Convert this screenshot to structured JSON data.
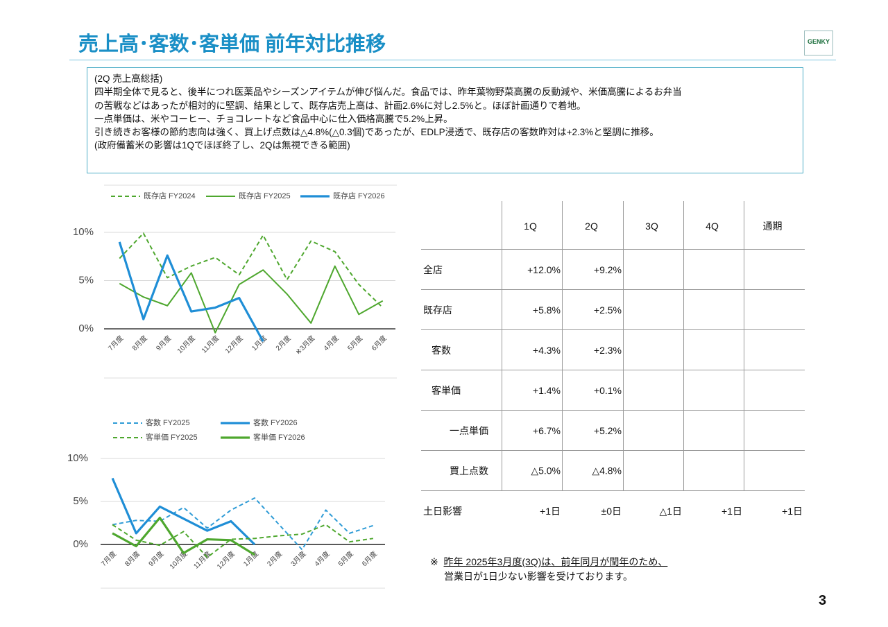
{
  "header": {
    "title": "売上高･客数･客単価 前年対比推移",
    "logo": "GENKY"
  },
  "summary": {
    "lines": [
      "(2Q 売上高総括)",
      "四半期全体で見ると、後半につれ医薬品やシーズンアイテムが伸び悩んだ。食品では、昨年葉物野菜高騰の反動減や、米価高騰によるお弁当",
      "の苦戦などはあったが相対的に堅調、結果として、既存店売上高は、計画2.6%に対し2.5%と。ほぼ計画通りで着地。",
      "一点単価は、米やコーヒー、チョコレートなど食品中心に仕入価格高騰で5.2%上昇。",
      "引き続きお客様の節約志向は強く、買上げ点数は△4.8%(△0.3個)であったが、EDLP浸透で、既存店の客数昨対は+2.3%と堅調に推移。",
      "(政府備蓄米の影響は1Qでほぼ終了し、2Qは無視できる範囲)"
    ]
  },
  "chart_data": [
    {
      "type": "line",
      "categories": [
        "7月度",
        "8月度",
        "9月度",
        "10月度",
        "11月度",
        "12月度",
        "1月度",
        "2月度",
        "※3月度",
        "4月度",
        "5月度",
        "6月度"
      ],
      "series": [
        {
          "name": "既存店 FY2024",
          "color": "#4ea72e",
          "dash": true,
          "values": [
            7.3,
            9.9,
            5.3,
            6.5,
            7.4,
            5.6,
            9.7,
            5.1,
            9.1,
            8.0,
            4.6,
            2.2
          ]
        },
        {
          "name": "既存店 FY2025",
          "color": "#4ea72e",
          "dash": false,
          "values": [
            4.7,
            3.3,
            2.4,
            5.8,
            -0.4,
            4.6,
            6.1,
            3.6,
            0.6,
            6.5,
            1.5,
            2.9
          ]
        },
        {
          "name": "既存店 FY2026",
          "color": "#1f8ed6",
          "dash": false,
          "values": [
            9.0,
            1.0,
            7.6,
            1.8,
            2.2,
            3.2,
            -1.3,
            null,
            null,
            null,
            null,
            null
          ]
        }
      ],
      "ylim": [
        -2,
        10.5
      ],
      "yticks": [
        {
          "value": 0,
          "label": "0%"
        },
        {
          "value": 5,
          "label": "5%"
        },
        {
          "value": 10,
          "label": "10%"
        }
      ],
      "grid": true
    },
    {
      "type": "line",
      "categories": [
        "7月度",
        "8月度",
        "9月度",
        "10月度",
        "11月度",
        "12月度",
        "1月度",
        "2月度",
        "3月度",
        "4月度",
        "5月度",
        "6月度"
      ],
      "series": [
        {
          "name": "客数 FY2025",
          "color": "#2e9bd6",
          "dash": true,
          "values": [
            2.3,
            2.8,
            2.7,
            4.3,
            1.9,
            4.0,
            5.4,
            2.4,
            -0.6,
            4.0,
            1.3,
            2.2
          ]
        },
        {
          "name": "客数 FY2026",
          "color": "#1f8ed6",
          "dash": false,
          "values": [
            7.7,
            1.3,
            4.4,
            3.0,
            1.6,
            2.7,
            0.0,
            null,
            null,
            null,
            null,
            null
          ]
        },
        {
          "name": "客単価 FY2025",
          "color": "#4ea72e",
          "dash": true,
          "values": [
            2.3,
            0.5,
            -0.1,
            1.5,
            -1.5,
            0.6,
            0.7,
            1.0,
            1.2,
            2.3,
            0.3,
            0.7
          ]
        },
        {
          "name": "客単価 FY2026",
          "color": "#4ea72e",
          "dash": false,
          "values": [
            1.3,
            -0.2,
            3.1,
            -1.0,
            0.6,
            0.5,
            -1.2,
            null,
            null,
            null,
            null,
            null
          ]
        }
      ],
      "ylim": [
        -2,
        11
      ],
      "yticks": [
        {
          "value": 0,
          "label": "0%"
        },
        {
          "value": 5,
          "label": "5%"
        },
        {
          "value": 10,
          "label": "10%"
        }
      ],
      "grid": true
    }
  ],
  "table": {
    "columns": [
      "1Q",
      "2Q",
      "3Q",
      "4Q",
      "通期"
    ],
    "rows": [
      {
        "label": "全店",
        "cells": [
          "+12.0%",
          "+9.2%"
        ]
      },
      {
        "label": "既存店",
        "cells": [
          "+5.8%",
          "+2.5%"
        ]
      },
      {
        "label": "客数",
        "cells": [
          "+4.3%",
          "+2.3%"
        ]
      },
      {
        "label": "客単価",
        "cells": [
          "+1.4%",
          "+0.1%"
        ]
      },
      {
        "label": "一点単価",
        "cells": [
          "+6.7%",
          "+5.2%"
        ]
      },
      {
        "label": "買上点数",
        "cells": [
          "△5.0%",
          "△4.8%"
        ]
      },
      {
        "label": "土日影響",
        "cells": [
          "+1日",
          "±0日",
          "△1日",
          "+1日",
          "+1日"
        ]
      }
    ]
  },
  "note": {
    "mark": "※",
    "lines": [
      "昨年 2025年3月度(3Q)は、前年同月が閏年のため、",
      "営業日が1日少ない影響を受けております。"
    ]
  },
  "page_number": "3"
}
